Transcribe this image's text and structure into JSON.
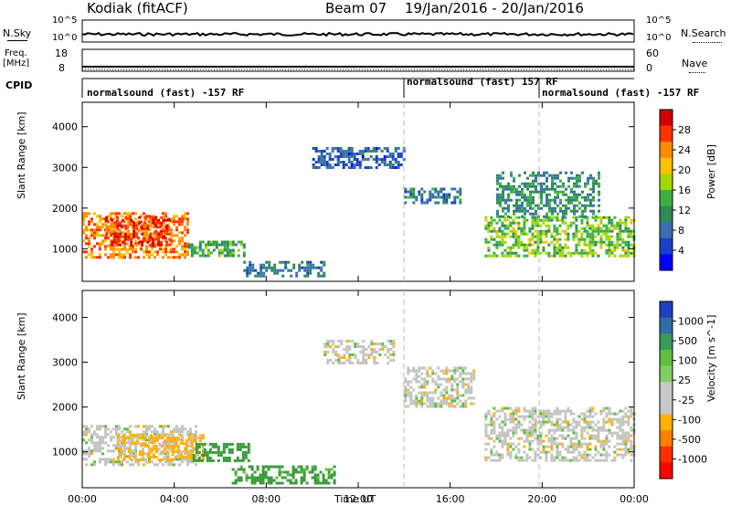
{
  "header": {
    "station": "Kodiak (fitACF)",
    "beam": "Beam 07",
    "date_range": "19/Jan/2016 - 20/Jan/2016"
  },
  "top_panels": {
    "nsky_label": "N.Sky",
    "nsky_ticks": [
      "10^5",
      "10^0"
    ],
    "nsearch_label": "N.Search",
    "nsearch_ticks": [
      "10^5",
      "10^0"
    ],
    "freq_label": "Freq.",
    "freq_unit": "[MHz]",
    "freq_ticks": [
      "18",
      "8"
    ],
    "nave_label": "Nave",
    "nave_ticks": [
      "60",
      "0"
    ],
    "cpid_label": "CPID",
    "cpid_modes": [
      {
        "text": "normalsound (fast) -157 RF",
        "start_hour": 0
      },
      {
        "text": "normalsound (fast) 157 RF",
        "start_hour": 14
      },
      {
        "text": "normalsound (fast) -157 RF",
        "start_hour": 20
      }
    ]
  },
  "chart_data": [
    {
      "type": "heatmap",
      "title": "Power",
      "ylabel": "Slant Range [km]",
      "xlabel": "",
      "ylim": [
        200,
        4600
      ],
      "xlim_hours": [
        0,
        24
      ],
      "yticks": [
        "1000",
        "2000",
        "3000",
        "4000"
      ],
      "colorbar": {
        "label": "Power [dB]",
        "ticks": [
          "28",
          "24",
          "20",
          "16",
          "12",
          "8",
          "4"
        ],
        "colors": [
          "#d40000",
          "#ff3300",
          "#ff8c00",
          "#ffc000",
          "#a0d800",
          "#3cb043",
          "#2e8b57",
          "#3a6fb0",
          "#1a3fc8",
          "#0000ff"
        ]
      },
      "echo_regions": [
        {
          "t0": 0.0,
          "t1": 4.6,
          "r0": 800,
          "r1": 1900,
          "level": 24
        },
        {
          "t0": 1.0,
          "t1": 3.8,
          "r0": 1100,
          "r1": 1800,
          "level": 28
        },
        {
          "t0": 4.6,
          "t1": 7.0,
          "r0": 800,
          "r1": 1200,
          "level": 14
        },
        {
          "t0": 7.0,
          "t1": 10.5,
          "r0": 350,
          "r1": 700,
          "level": 10
        },
        {
          "t0": 10.0,
          "t1": 14.0,
          "r0": 3000,
          "r1": 3500,
          "level": 8
        },
        {
          "t0": 14.0,
          "t1": 16.5,
          "r0": 2100,
          "r1": 2500,
          "level": 10
        },
        {
          "t0": 17.5,
          "t1": 24.0,
          "r0": 800,
          "r1": 1800,
          "level": 16
        },
        {
          "t0": 18.0,
          "t1": 22.5,
          "r0": 1800,
          "r1": 2900,
          "level": 12
        }
      ]
    },
    {
      "type": "heatmap",
      "title": "Velocity",
      "ylabel": "Slant Range [km]",
      "xlabel": "Time UT",
      "ylim": [
        200,
        4600
      ],
      "xlim_hours": [
        0,
        24
      ],
      "xticks": [
        "00:00",
        "04:00",
        "08:00",
        "12:00",
        "16:00",
        "20:00",
        "00:00"
      ],
      "yticks": [
        "1000",
        "2000",
        "3000",
        "4000"
      ],
      "colorbar": {
        "label": "Velocity [m s^-1]",
        "ticks": [
          "1000",
          "500",
          "100",
          "25",
          "-25",
          "-100",
          "-500",
          "-1000"
        ],
        "colors": [
          "#2040c0",
          "#2e6fa8",
          "#3a9a5a",
          "#5dc040",
          "#7fd060",
          "#c8c8c8",
          "#c8c8c8",
          "#ffb000",
          "#ff7f00",
          "#ff3000",
          "#ff0000"
        ]
      },
      "echo_regions": [
        {
          "t0": 0.0,
          "t1": 5.0,
          "r0": 700,
          "r1": 1600,
          "level": 0
        },
        {
          "t0": 1.5,
          "t1": 5.2,
          "r0": 800,
          "r1": 1400,
          "level": -100
        },
        {
          "t0": 4.8,
          "t1": 7.2,
          "r0": 800,
          "r1": 1200,
          "level": 300
        },
        {
          "t0": 6.5,
          "t1": 11.0,
          "r0": 300,
          "r1": 700,
          "level": 200
        },
        {
          "t0": 10.5,
          "t1": 13.5,
          "r0": 3000,
          "r1": 3500,
          "level": 0
        },
        {
          "t0": 14.0,
          "t1": 17.0,
          "r0": 2000,
          "r1": 2900,
          "level": 0
        },
        {
          "t0": 17.5,
          "t1": 24.0,
          "r0": 800,
          "r1": 2000,
          "level": 0
        }
      ]
    }
  ]
}
